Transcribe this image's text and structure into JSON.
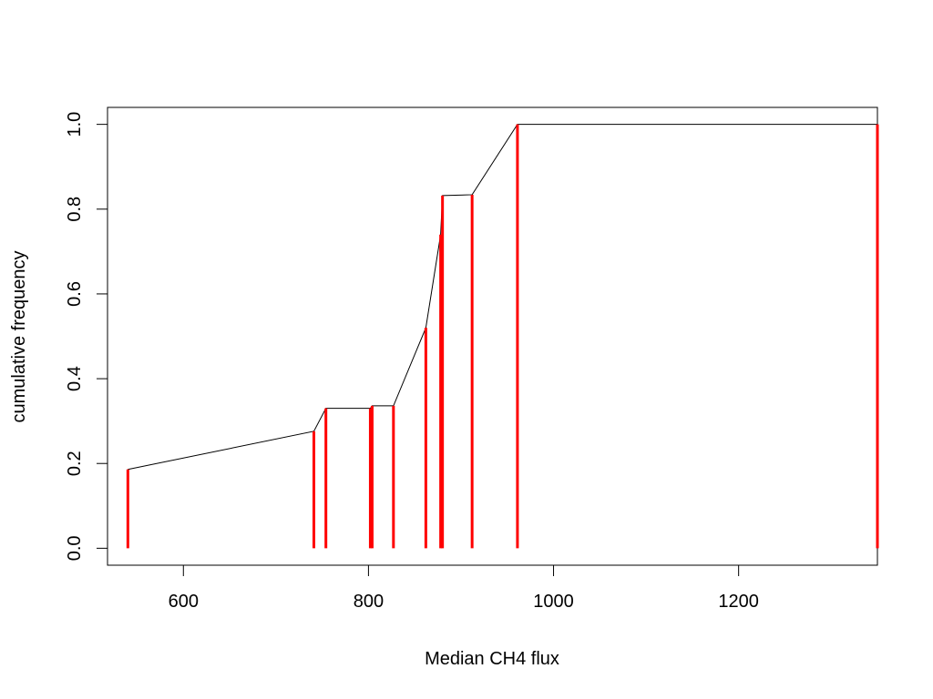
{
  "chart_data": {
    "type": "line",
    "title": "",
    "xlabel": "Median CH4 flux",
    "ylabel": "cumulative frequency",
    "xlim": [
      518,
      1350
    ],
    "ylim": [
      -0.04,
      1.04
    ],
    "x_ticks": [
      600,
      800,
      1000,
      1200
    ],
    "x_tick_labels": [
      "600",
      "800",
      "1000",
      "1200"
    ],
    "y_ticks": [
      0.0,
      0.2,
      0.4,
      0.6,
      0.8,
      1.0
    ],
    "y_tick_labels": [
      "0.0",
      "0.2",
      "0.4",
      "0.6",
      "0.8",
      "1.0"
    ],
    "grid": false,
    "series": [
      {
        "color": "#000000",
        "style": "line",
        "x": [
          540,
          741,
          754,
          802,
          804,
          827,
          862,
          878,
          880,
          912,
          961,
          1350
        ],
        "y": [
          0.186,
          0.276,
          0.33,
          0.33,
          0.336,
          0.336,
          0.52,
          0.74,
          0.832,
          0.834,
          1.0,
          1.0
        ]
      },
      {
        "color": "#ff0000",
        "style": "vertical-segments",
        "x": [
          540,
          741,
          754,
          802,
          804,
          827,
          862,
          878,
          880,
          912,
          961,
          1350
        ],
        "y": [
          0.186,
          0.276,
          0.33,
          0.33,
          0.336,
          0.336,
          0.52,
          0.74,
          0.832,
          0.834,
          1.0,
          1.0
        ]
      }
    ]
  }
}
